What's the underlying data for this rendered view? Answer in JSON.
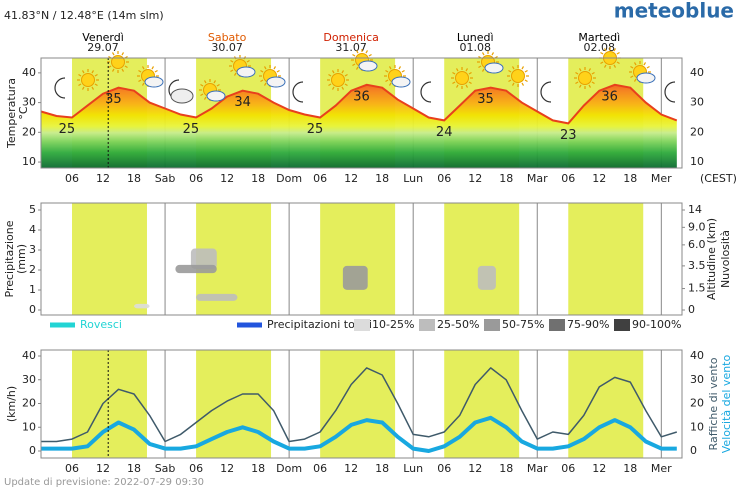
{
  "header": {
    "location": "41.83°N / 12.48°E (14m slm)",
    "logo": "meteoblue"
  },
  "days": [
    {
      "name": "Venerdì",
      "date": "29.07",
      "color": "#000000"
    },
    {
      "name": "Sabato",
      "date": "30.07",
      "color": "#e05a00"
    },
    {
      "name": "Domenica",
      "date": "31.07",
      "color": "#d02000"
    },
    {
      "name": "Lunedì",
      "date": "01.08",
      "color": "#000000"
    },
    {
      "name": "Martedì",
      "date": "02.08",
      "color": "#000000"
    }
  ],
  "time_axis": {
    "xlim": [
      0,
      124
    ],
    "xticks": [
      {
        "value": 6,
        "label": "06"
      },
      12,
      18,
      {
        "value": 24,
        "label": "Sab"
      },
      {
        "value": 30,
        "label": "06"
      },
      {
        "value": 36,
        "label": "12"
      },
      {
        "value": 42,
        "label": "18"
      },
      {
        "value": 48,
        "label": "Dom"
      },
      {
        "value": 54,
        "label": "06"
      },
      {
        "value": 60,
        "label": "12"
      },
      {
        "value": 66,
        "label": "18"
      },
      {
        "value": 72,
        "label": "Lun"
      },
      {
        "value": 78,
        "label": "06"
      },
      {
        "value": 84,
        "label": "12"
      },
      {
        "value": 90,
        "label": "18"
      },
      {
        "value": 96,
        "label": "Mar"
      },
      {
        "value": 102,
        "label": "06"
      },
      {
        "value": 108,
        "label": "12"
      },
      {
        "value": 114,
        "label": "18"
      },
      {
        "value": 120,
        "label": "Mer"
      }
    ],
    "timezone": "(CEST)",
    "now": 13,
    "daylight": [
      [
        6,
        20.5
      ],
      [
        30,
        44.5
      ],
      [
        54,
        68.5
      ],
      [
        78,
        92.5
      ],
      [
        102,
        116.5
      ]
    ],
    "daylight_color": "#e4ee5c"
  },
  "chart_data": [
    {
      "type": "line",
      "ylabel": "Temperatura",
      "yunit": "°C",
      "ylim": [
        8,
        45
      ],
      "yticks": [
        10,
        20,
        30,
        40
      ],
      "x": [
        0,
        3,
        6,
        9,
        12,
        15,
        18,
        21,
        24,
        27,
        30,
        33,
        36,
        39,
        42,
        45,
        48,
        51,
        54,
        57,
        60,
        63,
        66,
        69,
        72,
        75,
        78,
        81,
        84,
        87,
        90,
        93,
        96,
        99,
        102,
        105,
        108,
        111,
        114,
        117,
        120,
        123
      ],
      "series": [
        {
          "color": "#e8401c",
          "values": [
            27,
            25.5,
            25,
            29,
            33,
            35,
            34,
            30,
            28,
            26,
            25,
            28,
            32,
            34,
            33,
            30,
            27.5,
            26,
            25,
            29,
            34,
            36,
            35,
            31,
            28,
            25,
            24,
            29,
            34,
            35,
            34,
            30,
            27,
            24,
            23,
            29,
            34,
            36,
            35,
            30,
            26,
            24
          ]
        }
      ],
      "extremes": [
        {
          "x": 5,
          "value": 25
        },
        {
          "x": 14,
          "value": 35
        },
        {
          "x": 29,
          "value": 25
        },
        {
          "x": 39,
          "value": 34
        },
        {
          "x": 53,
          "value": 25
        },
        {
          "x": 62,
          "value": 36
        },
        {
          "x": 78,
          "value": 24
        },
        {
          "x": 86,
          "value": 35
        },
        {
          "x": 102,
          "value": 23
        },
        {
          "x": 110,
          "value": 36
        }
      ]
    },
    {
      "type": "precipitation",
      "ylabel": "Precipitazione",
      "yunit": "(mm)",
      "ylim": [
        0,
        5
      ],
      "yticks": [
        0,
        1,
        2,
        3,
        4,
        5
      ],
      "y2label": "Altitudine (km)",
      "y2label2": "Nuvolosità",
      "y2scale": "pressure",
      "y2lim": [
        0,
        14
      ],
      "y2ticks": [
        0,
        1.5,
        3.5,
        {
          "value": 6,
          "label": "6.0"
        },
        {
          "value": 9,
          "label": "9.0"
        },
        14
      ],
      "series": [
        {
          "name": "Rovesci",
          "color": "#22d4d4"
        },
        {
          "name": "Precipitazioni totali",
          "color": "#2255dd"
        }
      ],
      "cloud_levels": [
        {
          "label": "10-25%",
          "color": "#dcdcdc"
        },
        {
          "label": "25-50%",
          "color": "#bdbdbd"
        },
        {
          "label": "50-75%",
          "color": "#9a9a9a"
        },
        {
          "label": "75-90%",
          "color": "#707070"
        },
        {
          "label": "90-100%",
          "color": "#404040"
        }
      ],
      "clouds": [
        {
          "x": [
            18,
            21
          ],
          "alt": [
            0.1,
            0.4
          ],
          "level": 0
        },
        {
          "x": [
            29,
            34
          ],
          "alt": [
            3.2,
            5.5
          ],
          "level": 1
        },
        {
          "x": [
            26,
            34
          ],
          "alt": [
            2.8,
            3.6
          ],
          "level": 2
        },
        {
          "x": [
            30,
            38
          ],
          "alt": [
            0.6,
            1.1
          ],
          "level": 1
        },
        {
          "x": [
            58.4,
            63.2
          ],
          "alt": [
            1.4,
            3.5
          ],
          "level": 2
        },
        {
          "x": [
            84.5,
            88
          ],
          "alt": [
            1.4,
            3.5
          ],
          "level": 1
        }
      ]
    },
    {
      "type": "line",
      "ylabel": "(km/h)",
      "ylim": [
        0,
        40
      ],
      "yticks": [
        0,
        10,
        20,
        30,
        40
      ],
      "x": [
        0,
        3,
        6,
        9,
        12,
        15,
        18,
        21,
        24,
        27,
        30,
        33,
        36,
        39,
        42,
        45,
        48,
        51,
        54,
        57,
        60,
        63,
        66,
        69,
        72,
        75,
        78,
        81,
        84,
        87,
        90,
        93,
        96,
        99,
        102,
        105,
        108,
        111,
        114,
        117,
        120,
        123
      ],
      "series": [
        {
          "name": "Raffiche di vento",
          "color": "#3f5a6a",
          "width": 1.5,
          "values": [
            4,
            4,
            5,
            8,
            20,
            26,
            24,
            15,
            4,
            7,
            12,
            17,
            21,
            24,
            24,
            17,
            4,
            5,
            8,
            17,
            28,
            35,
            32,
            20,
            7,
            6,
            8,
            15,
            28,
            35,
            30,
            17,
            5,
            8,
            7,
            15,
            27,
            31,
            29,
            17,
            6,
            8
          ]
        },
        {
          "name": "Velocità del vento",
          "color": "#18a8e0",
          "width": 4,
          "values": [
            1,
            1,
            1,
            2,
            8,
            12,
            9,
            3,
            1,
            1,
            2,
            5,
            8,
            10,
            8,
            4,
            1,
            1,
            2,
            6,
            11,
            13,
            12,
            6,
            1,
            0,
            2,
            6,
            12,
            14,
            10,
            4,
            1,
            1,
            2,
            5,
            10,
            13,
            10,
            4,
            1,
            1
          ]
        }
      ]
    }
  ],
  "footer": "Update di previsione: 2022-07-29 09:30"
}
